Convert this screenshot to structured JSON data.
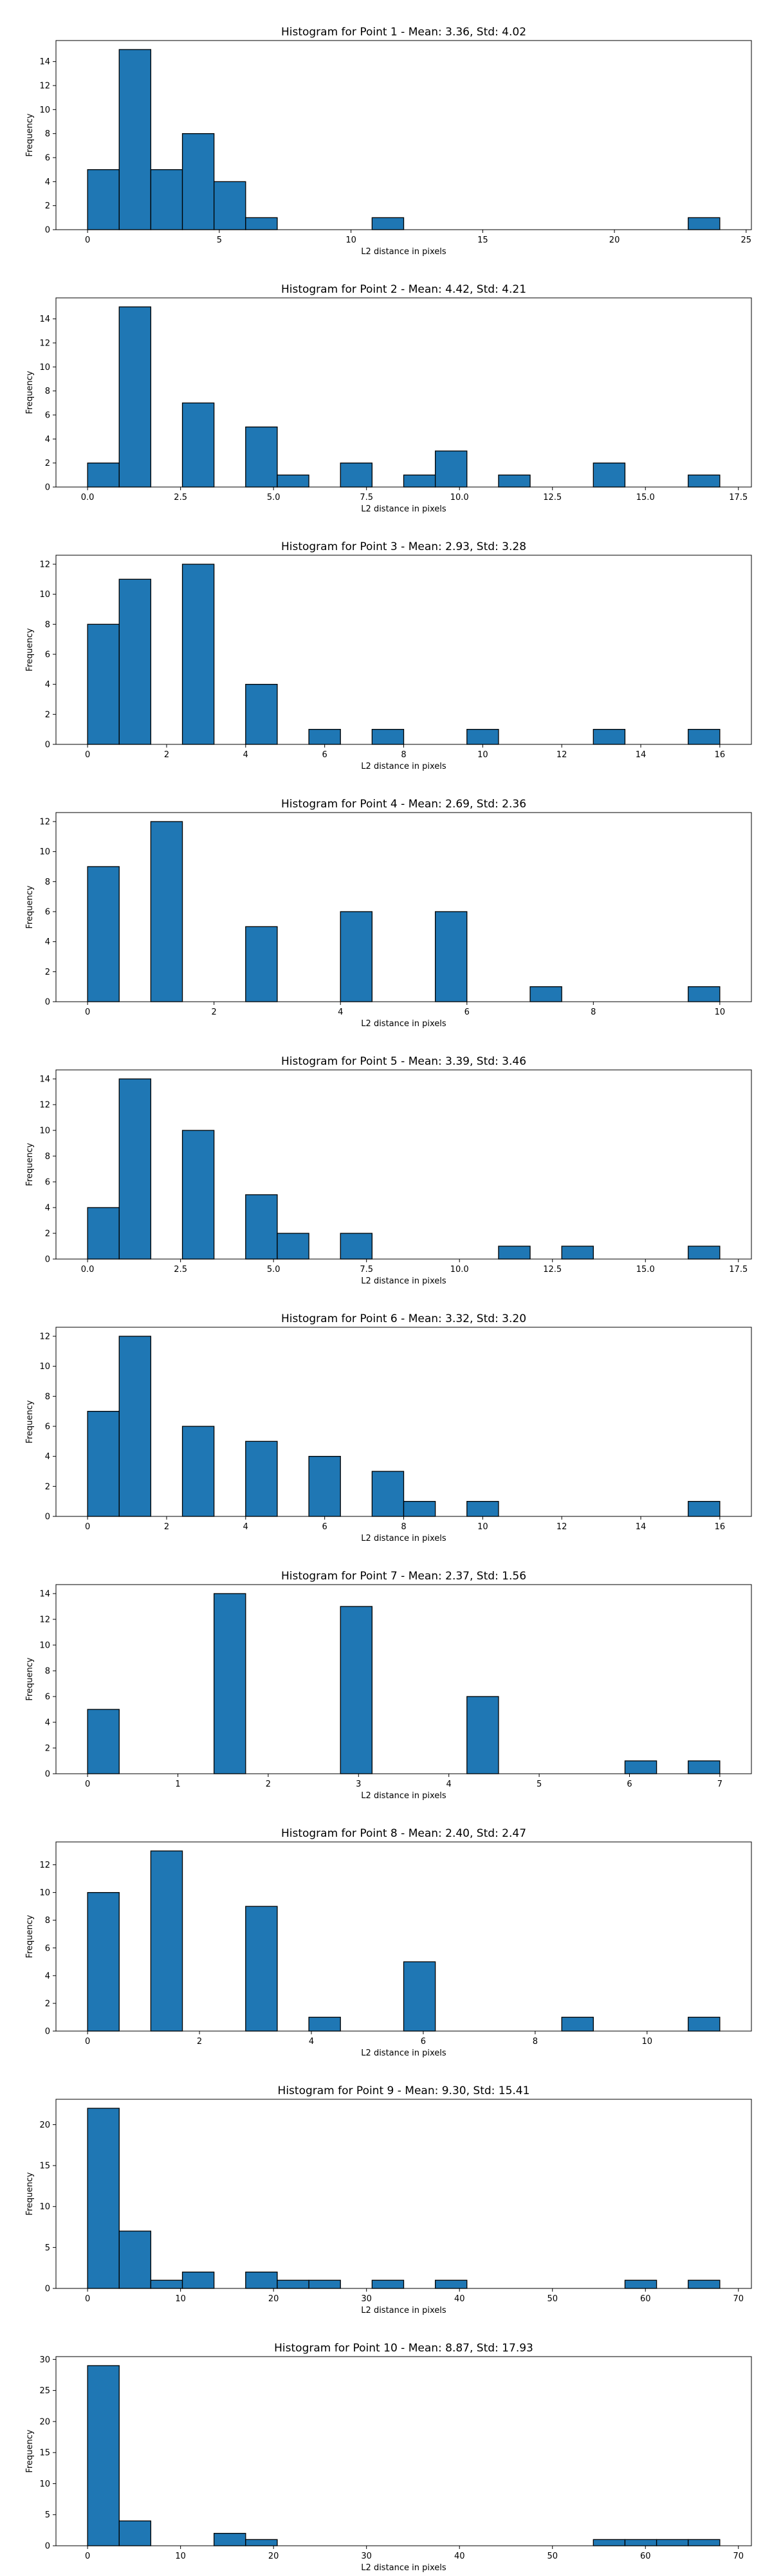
{
  "chart_data": [
    {
      "type": "bar",
      "title": "Histogram for Point 1 - Mean: 3.36, Std: 4.02",
      "xlabel": "L2 distance in pixels",
      "ylabel": "Frequency",
      "xlim": [
        -1.2,
        25.2
      ],
      "ylim": [
        0,
        15.75
      ],
      "xticks": [
        0,
        5,
        10,
        15,
        20,
        25
      ],
      "xtick_labels": [
        "0",
        "5",
        "10",
        "15",
        "20",
        "25"
      ],
      "yticks": [
        0,
        2,
        4,
        6,
        8,
        10,
        12,
        14
      ],
      "bin_edges": [
        0.0,
        1.2,
        2.4,
        3.6,
        4.8,
        6.0,
        7.2,
        8.4,
        9.6,
        10.8,
        12.0,
        13.2,
        14.4,
        15.6,
        16.8,
        18.0,
        19.2,
        20.4,
        21.6,
        22.8,
        24.0
      ],
      "values": [
        5,
        15,
        5,
        8,
        4,
        1,
        0,
        0,
        0,
        1,
        0,
        0,
        0,
        0,
        0,
        0,
        0,
        0,
        0,
        1
      ],
      "bar_color": "#1f77b4",
      "edge_color": "#000000",
      "grid": false,
      "legend": "none"
    },
    {
      "type": "bar",
      "title": "Histogram for Point 2 - Mean: 4.42, Std: 4.21",
      "xlabel": "L2 distance in pixels",
      "ylabel": "Frequency",
      "xlim": [
        -0.85,
        17.85
      ],
      "ylim": [
        0,
        15.75
      ],
      "xticks": [
        0,
        2.5,
        5,
        7.5,
        10,
        12.5,
        15,
        17.5
      ],
      "xtick_labels": [
        "0.0",
        "2.5",
        "5.0",
        "7.5",
        "10.0",
        "12.5",
        "15.0",
        "17.5"
      ],
      "yticks": [
        0,
        2,
        4,
        6,
        8,
        10,
        12,
        14
      ],
      "bin_edges": [
        0.0,
        0.85,
        1.7,
        2.55,
        3.4,
        4.25,
        5.1,
        5.95,
        6.8,
        7.65,
        8.5,
        9.35,
        10.2,
        11.05,
        11.9,
        12.75,
        13.6,
        14.45,
        15.3,
        16.15,
        17.0
      ],
      "values": [
        2,
        15,
        0,
        7,
        0,
        5,
        1,
        0,
        2,
        0,
        1,
        3,
        0,
        1,
        0,
        0,
        2,
        0,
        0,
        1
      ],
      "bar_color": "#1f77b4",
      "edge_color": "#000000",
      "grid": false,
      "legend": "none"
    },
    {
      "type": "bar",
      "title": "Histogram for Point 3 - Mean: 2.93, Std: 3.28",
      "xlabel": "L2 distance in pixels",
      "ylabel": "Frequency",
      "xlim": [
        -0.8,
        16.8
      ],
      "ylim": [
        0,
        12.6
      ],
      "xticks": [
        0,
        2,
        4,
        6,
        8,
        10,
        12,
        14,
        16
      ],
      "xtick_labels": [
        "0",
        "2",
        "4",
        "6",
        "8",
        "10",
        "12",
        "14",
        "16"
      ],
      "yticks": [
        0,
        2,
        4,
        6,
        8,
        10,
        12
      ],
      "bin_edges": [
        0.0,
        0.8,
        1.6,
        2.4,
        3.2,
        4.0,
        4.8,
        5.6,
        6.4,
        7.2,
        8.0,
        8.8,
        9.6,
        10.4,
        11.2,
        12.0,
        12.8,
        13.6,
        14.4,
        15.2,
        16.0
      ],
      "values": [
        8,
        11,
        0,
        12,
        0,
        4,
        0,
        1,
        0,
        1,
        0,
        0,
        1,
        0,
        0,
        0,
        1,
        0,
        0,
        1
      ],
      "bar_color": "#1f77b4",
      "edge_color": "#000000",
      "grid": false,
      "legend": "none"
    },
    {
      "type": "bar",
      "title": "Histogram for Point 4 - Mean: 2.69, Std: 2.36",
      "xlabel": "L2 distance in pixels",
      "ylabel": "Frequency",
      "xlim": [
        -0.5,
        10.5
      ],
      "ylim": [
        0,
        12.6
      ],
      "xticks": [
        0,
        2,
        4,
        6,
        8,
        10
      ],
      "xtick_labels": [
        "0",
        "2",
        "4",
        "6",
        "8",
        "10"
      ],
      "yticks": [
        0,
        2,
        4,
        6,
        8,
        10,
        12
      ],
      "bin_edges": [
        0.0,
        0.5,
        1.0,
        1.5,
        2.0,
        2.5,
        3.0,
        3.5,
        4.0,
        4.5,
        5.0,
        5.5,
        6.0,
        6.5,
        7.0,
        7.5,
        8.0,
        8.5,
        9.0,
        9.5,
        10.0
      ],
      "values": [
        9,
        0,
        12,
        0,
        0,
        5,
        0,
        0,
        6,
        0,
        0,
        6,
        0,
        0,
        1,
        0,
        0,
        0,
        0,
        1
      ],
      "bar_color": "#1f77b4",
      "edge_color": "#000000",
      "grid": false,
      "legend": "none"
    },
    {
      "type": "bar",
      "title": "Histogram for Point 5 - Mean: 3.39, Std: 3.46",
      "xlabel": "L2 distance in pixels",
      "ylabel": "Frequency",
      "xlim": [
        -0.85,
        17.85
      ],
      "ylim": [
        0,
        14.7
      ],
      "xticks": [
        0,
        2.5,
        5,
        7.5,
        10,
        12.5,
        15,
        17.5
      ],
      "xtick_labels": [
        "0.0",
        "2.5",
        "5.0",
        "7.5",
        "10.0",
        "12.5",
        "15.0",
        "17.5"
      ],
      "yticks": [
        0,
        2,
        4,
        6,
        8,
        10,
        12,
        14
      ],
      "bin_edges": [
        0.0,
        0.85,
        1.7,
        2.55,
        3.4,
        4.25,
        5.1,
        5.95,
        6.8,
        7.65,
        8.5,
        9.35,
        10.2,
        11.05,
        11.9,
        12.75,
        13.6,
        14.45,
        15.3,
        16.15,
        17.0
      ],
      "values": [
        4,
        14,
        0,
        10,
        0,
        5,
        2,
        0,
        2,
        0,
        0,
        0,
        0,
        1,
        0,
        1,
        0,
        0,
        0,
        1
      ],
      "bar_color": "#1f77b4",
      "edge_color": "#000000",
      "grid": false,
      "legend": "none"
    },
    {
      "type": "bar",
      "title": "Histogram for Point 6 - Mean: 3.32, Std: 3.20",
      "xlabel": "L2 distance in pixels",
      "ylabel": "Frequency",
      "xlim": [
        -0.8,
        16.8
      ],
      "ylim": [
        0,
        12.6
      ],
      "xticks": [
        0,
        2,
        4,
        6,
        8,
        10,
        12,
        14,
        16
      ],
      "xtick_labels": [
        "0",
        "2",
        "4",
        "6",
        "8",
        "10",
        "12",
        "14",
        "16"
      ],
      "yticks": [
        0,
        2,
        4,
        6,
        8,
        10,
        12
      ],
      "bin_edges": [
        0.0,
        0.8,
        1.6,
        2.4,
        3.2,
        4.0,
        4.8,
        5.6,
        6.4,
        7.2,
        8.0,
        8.8,
        9.6,
        10.4,
        11.2,
        12.0,
        12.8,
        13.6,
        14.4,
        15.2,
        16.0
      ],
      "values": [
        7,
        12,
        0,
        6,
        0,
        5,
        0,
        4,
        0,
        3,
        1,
        0,
        1,
        0,
        0,
        0,
        0,
        0,
        0,
        1
      ],
      "bar_color": "#1f77b4",
      "edge_color": "#000000",
      "grid": false,
      "legend": "none"
    },
    {
      "type": "bar",
      "title": "Histogram for Point 7 - Mean: 2.37, Std: 1.56",
      "xlabel": "L2 distance in pixels",
      "ylabel": "Frequency",
      "xlim": [
        -0.35,
        7.35
      ],
      "ylim": [
        0,
        14.7
      ],
      "xticks": [
        0,
        1,
        2,
        3,
        4,
        5,
        6,
        7
      ],
      "xtick_labels": [
        "0",
        "1",
        "2",
        "3",
        "4",
        "5",
        "6",
        "7"
      ],
      "yticks": [
        0,
        2,
        4,
        6,
        8,
        10,
        12,
        14
      ],
      "bin_edges": [
        0.0,
        0.35,
        0.7,
        1.05,
        1.4,
        1.75,
        2.1,
        2.45,
        2.8,
        3.15,
        3.5,
        3.85,
        4.2,
        4.55,
        4.9,
        5.25,
        5.6,
        5.95,
        6.3,
        6.65,
        7.0
      ],
      "values": [
        5,
        0,
        0,
        0,
        14,
        0,
        0,
        0,
        13,
        0,
        0,
        0,
        6,
        0,
        0,
        0,
        0,
        1,
        0,
        1
      ],
      "bar_color": "#1f77b4",
      "edge_color": "#000000",
      "grid": false,
      "legend": "none"
    },
    {
      "type": "bar",
      "title": "Histogram for Point 8 - Mean: 2.40, Std: 2.47",
      "xlabel": "L2 distance in pixels",
      "ylabel": "Frequency",
      "xlim": [
        -0.565,
        11.865
      ],
      "ylim": [
        0,
        13.65
      ],
      "xticks": [
        0,
        2,
        4,
        6,
        8,
        10
      ],
      "xtick_labels": [
        "0",
        "2",
        "4",
        "6",
        "8",
        "10"
      ],
      "yticks": [
        0,
        2,
        4,
        6,
        8,
        10,
        12
      ],
      "bin_edges": [
        0.0,
        0.565,
        1.13,
        1.695,
        2.26,
        2.825,
        3.39,
        3.955,
        4.52,
        5.085,
        5.65,
        6.215,
        6.78,
        7.345,
        7.91,
        8.475,
        9.04,
        9.605,
        10.17,
        10.735,
        11.3
      ],
      "values": [
        10,
        0,
        13,
        0,
        0,
        9,
        0,
        1,
        0,
        0,
        5,
        0,
        0,
        0,
        0,
        1,
        0,
        0,
        0,
        1
      ],
      "bar_color": "#1f77b4",
      "edge_color": "#000000",
      "grid": false,
      "legend": "none"
    },
    {
      "type": "bar",
      "title": "Histogram for Point 9 - Mean: 9.30, Std: 15.41",
      "xlabel": "L2 distance in pixels",
      "ylabel": "Frequency",
      "xlim": [
        -3.4,
        71.4
      ],
      "ylim": [
        0,
        23.1
      ],
      "xticks": [
        0,
        10,
        20,
        30,
        40,
        50,
        60,
        70
      ],
      "xtick_labels": [
        "0",
        "10",
        "20",
        "30",
        "40",
        "50",
        "60",
        "70"
      ],
      "yticks": [
        0,
        5,
        10,
        15,
        20
      ],
      "bin_edges": [
        0.0,
        3.4,
        6.8,
        10.2,
        13.6,
        17.0,
        20.4,
        23.8,
        27.2,
        30.6,
        34.0,
        37.4,
        40.8,
        44.2,
        47.6,
        51.0,
        54.4,
        57.8,
        61.2,
        64.6,
        68.0
      ],
      "values": [
        22,
        7,
        1,
        2,
        0,
        2,
        1,
        1,
        0,
        1,
        0,
        1,
        0,
        0,
        0,
        0,
        0,
        1,
        0,
        1
      ],
      "bar_color": "#1f77b4",
      "edge_color": "#000000",
      "grid": false,
      "legend": "none"
    },
    {
      "type": "bar",
      "title": "Histogram for Point 10 - Mean: 8.87, Std: 17.93",
      "xlabel": "L2 distance in pixels",
      "ylabel": "Frequency",
      "xlim": [
        -3.4,
        71.4
      ],
      "ylim": [
        0,
        30.45
      ],
      "xticks": [
        0,
        10,
        20,
        30,
        40,
        50,
        60,
        70
      ],
      "xtick_labels": [
        "0",
        "10",
        "20",
        "30",
        "40",
        "50",
        "60",
        "70"
      ],
      "yticks": [
        0,
        5,
        10,
        15,
        20,
        25,
        30
      ],
      "bin_edges": [
        0.0,
        3.4,
        6.8,
        10.2,
        13.6,
        17.0,
        20.4,
        23.8,
        27.2,
        30.6,
        34.0,
        37.4,
        40.8,
        44.2,
        47.6,
        51.0,
        54.4,
        57.8,
        61.2,
        64.6,
        68.0
      ],
      "values": [
        29,
        4,
        0,
        0,
        2,
        1,
        0,
        0,
        0,
        0,
        0,
        0,
        0,
        0,
        0,
        0,
        1,
        1,
        1,
        1
      ],
      "bar_color": "#1f77b4",
      "edge_color": "#000000",
      "grid": false,
      "legend": "none"
    }
  ]
}
